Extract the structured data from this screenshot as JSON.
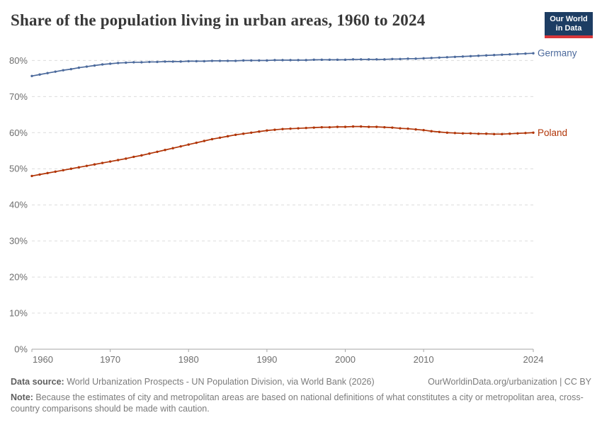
{
  "header": {
    "logo": {
      "line1": "Our World",
      "line2": "in Data",
      "bg_color": "#1d3d63",
      "bar_color": "#d8363a"
    }
  },
  "chart_data": {
    "type": "line",
    "title": "Share of the population living in urban areas, 1960 to 2024",
    "xlabel": "",
    "ylabel": "",
    "grid": "horizontal-dashed",
    "legend": "end-of-line-labels",
    "xlim": [
      1960,
      2024
    ],
    "ylim": [
      0,
      84
    ],
    "x_ticks": [
      1960,
      1970,
      1980,
      1990,
      2000,
      2010,
      2024
    ],
    "y_ticks": [
      0,
      10,
      20,
      30,
      40,
      50,
      60,
      70,
      80
    ],
    "y_tick_suffix": "%",
    "x": [
      1960,
      1961,
      1962,
      1963,
      1964,
      1965,
      1966,
      1967,
      1968,
      1969,
      1970,
      1971,
      1972,
      1973,
      1974,
      1975,
      1976,
      1977,
      1978,
      1979,
      1980,
      1981,
      1982,
      1983,
      1984,
      1985,
      1986,
      1987,
      1988,
      1989,
      1990,
      1991,
      1992,
      1993,
      1994,
      1995,
      1996,
      1997,
      1998,
      1999,
      2000,
      2001,
      2002,
      2003,
      2004,
      2005,
      2006,
      2007,
      2008,
      2009,
      2010,
      2011,
      2012,
      2013,
      2014,
      2015,
      2016,
      2017,
      2018,
      2019,
      2020,
      2021,
      2022,
      2023,
      2024
    ],
    "series": [
      {
        "name": "Germany",
        "color": "#4c6a9c",
        "values": [
          75.7,
          76.1,
          76.5,
          76.9,
          77.3,
          77.6,
          78.0,
          78.3,
          78.6,
          78.9,
          79.1,
          79.3,
          79.4,
          79.5,
          79.5,
          79.6,
          79.6,
          79.7,
          79.7,
          79.7,
          79.8,
          79.8,
          79.8,
          79.9,
          79.9,
          79.9,
          79.9,
          80.0,
          80.0,
          80.0,
          80.0,
          80.1,
          80.1,
          80.1,
          80.1,
          80.1,
          80.2,
          80.2,
          80.2,
          80.2,
          80.2,
          80.3,
          80.3,
          80.3,
          80.3,
          80.3,
          80.4,
          80.4,
          80.5,
          80.5,
          80.6,
          80.7,
          80.8,
          80.9,
          81.0,
          81.1,
          81.2,
          81.3,
          81.4,
          81.5,
          81.6,
          81.7,
          81.8,
          81.9,
          82.0
        ]
      },
      {
        "name": "Poland",
        "color": "#b13507",
        "values": [
          48.0,
          48.4,
          48.8,
          49.2,
          49.6,
          50.0,
          50.4,
          50.8,
          51.2,
          51.6,
          52.0,
          52.4,
          52.8,
          53.3,
          53.7,
          54.2,
          54.7,
          55.2,
          55.7,
          56.2,
          56.7,
          57.2,
          57.7,
          58.2,
          58.6,
          59.0,
          59.4,
          59.7,
          60.0,
          60.3,
          60.6,
          60.8,
          61.0,
          61.1,
          61.2,
          61.3,
          61.4,
          61.5,
          61.5,
          61.6,
          61.6,
          61.7,
          61.7,
          61.6,
          61.6,
          61.5,
          61.4,
          61.2,
          61.1,
          60.9,
          60.7,
          60.4,
          60.2,
          60.0,
          59.9,
          59.8,
          59.8,
          59.7,
          59.7,
          59.6,
          59.6,
          59.7,
          59.8,
          59.9,
          60.0
        ]
      }
    ]
  },
  "footer": {
    "datasource_label": "Data source:",
    "datasource_text": " World Urbanization Prospects - UN Population Division, via World Bank (2026)",
    "attribution": "OurWorldinData.org/urbanization | CC BY",
    "note_label": "Note:",
    "note_text": " Because the estimates of city and metropolitan areas are based on national definitions of what constitutes a city or metropolitan area, cross-country comparisons should be made with caution."
  }
}
